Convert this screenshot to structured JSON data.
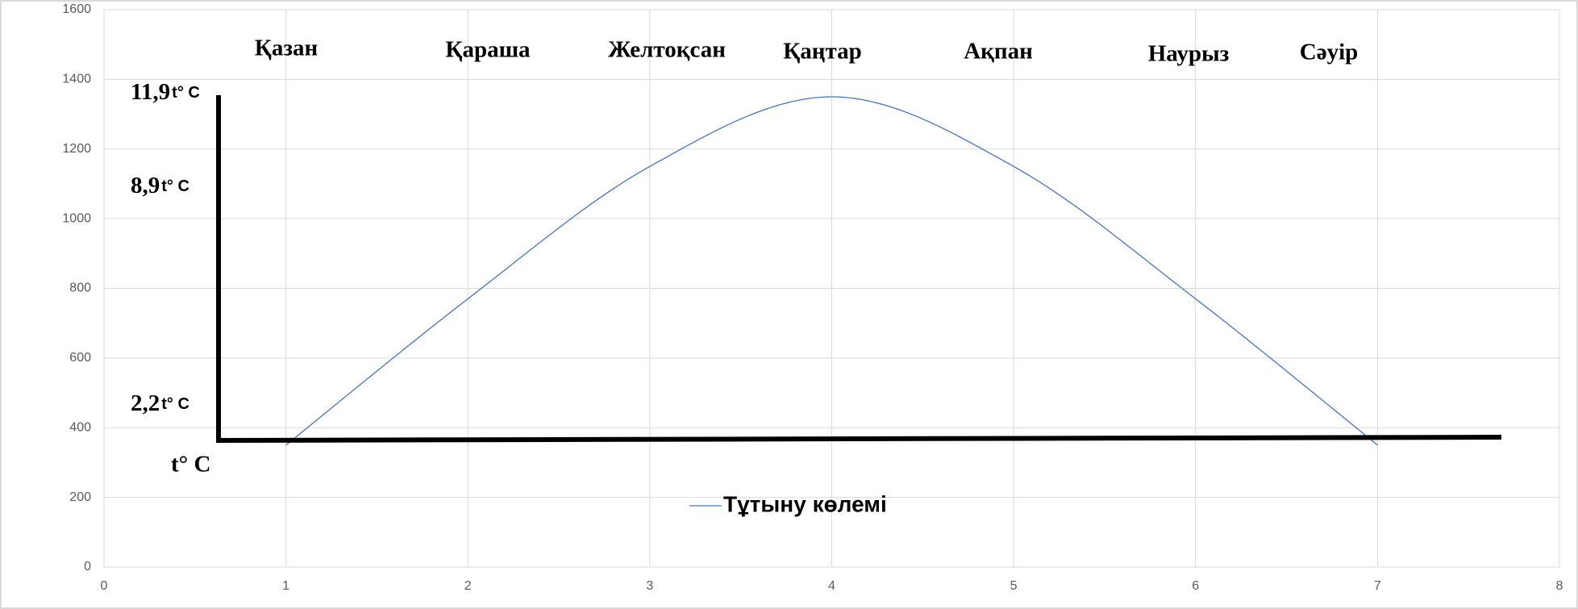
{
  "chart_data": {
    "type": "line",
    "x": [
      1,
      2,
      3,
      4,
      5,
      6,
      7
    ],
    "series": [
      {
        "name": "Тұтыну көлемі",
        "color": "#4472c4",
        "values": [
          350,
          770,
          1150,
          1350,
          1150,
          770,
          350
        ]
      }
    ],
    "xlim": [
      0,
      8
    ],
    "xticks": [
      0,
      1,
      2,
      3,
      4,
      5,
      6,
      7,
      8
    ],
    "ylim": [
      0,
      1600
    ],
    "yticks": [
      0,
      200,
      400,
      600,
      800,
      1000,
      1200,
      1400,
      1600
    ],
    "grid": true,
    "smooth": true,
    "legend": "bottom",
    "month_labels": [
      "Қазан",
      "Қараша",
      "Желтоқсан",
      "Қаңтар",
      "Ақпан",
      "Наурыз",
      "Сәуір"
    ],
    "temperature_labels": [
      {
        "value": "11,9",
        "unit": "t° C"
      },
      {
        "value": "8,9",
        "unit": "t° C"
      },
      {
        "value": "2,2",
        "unit": "t° C"
      }
    ],
    "axis_label": "t° C"
  }
}
